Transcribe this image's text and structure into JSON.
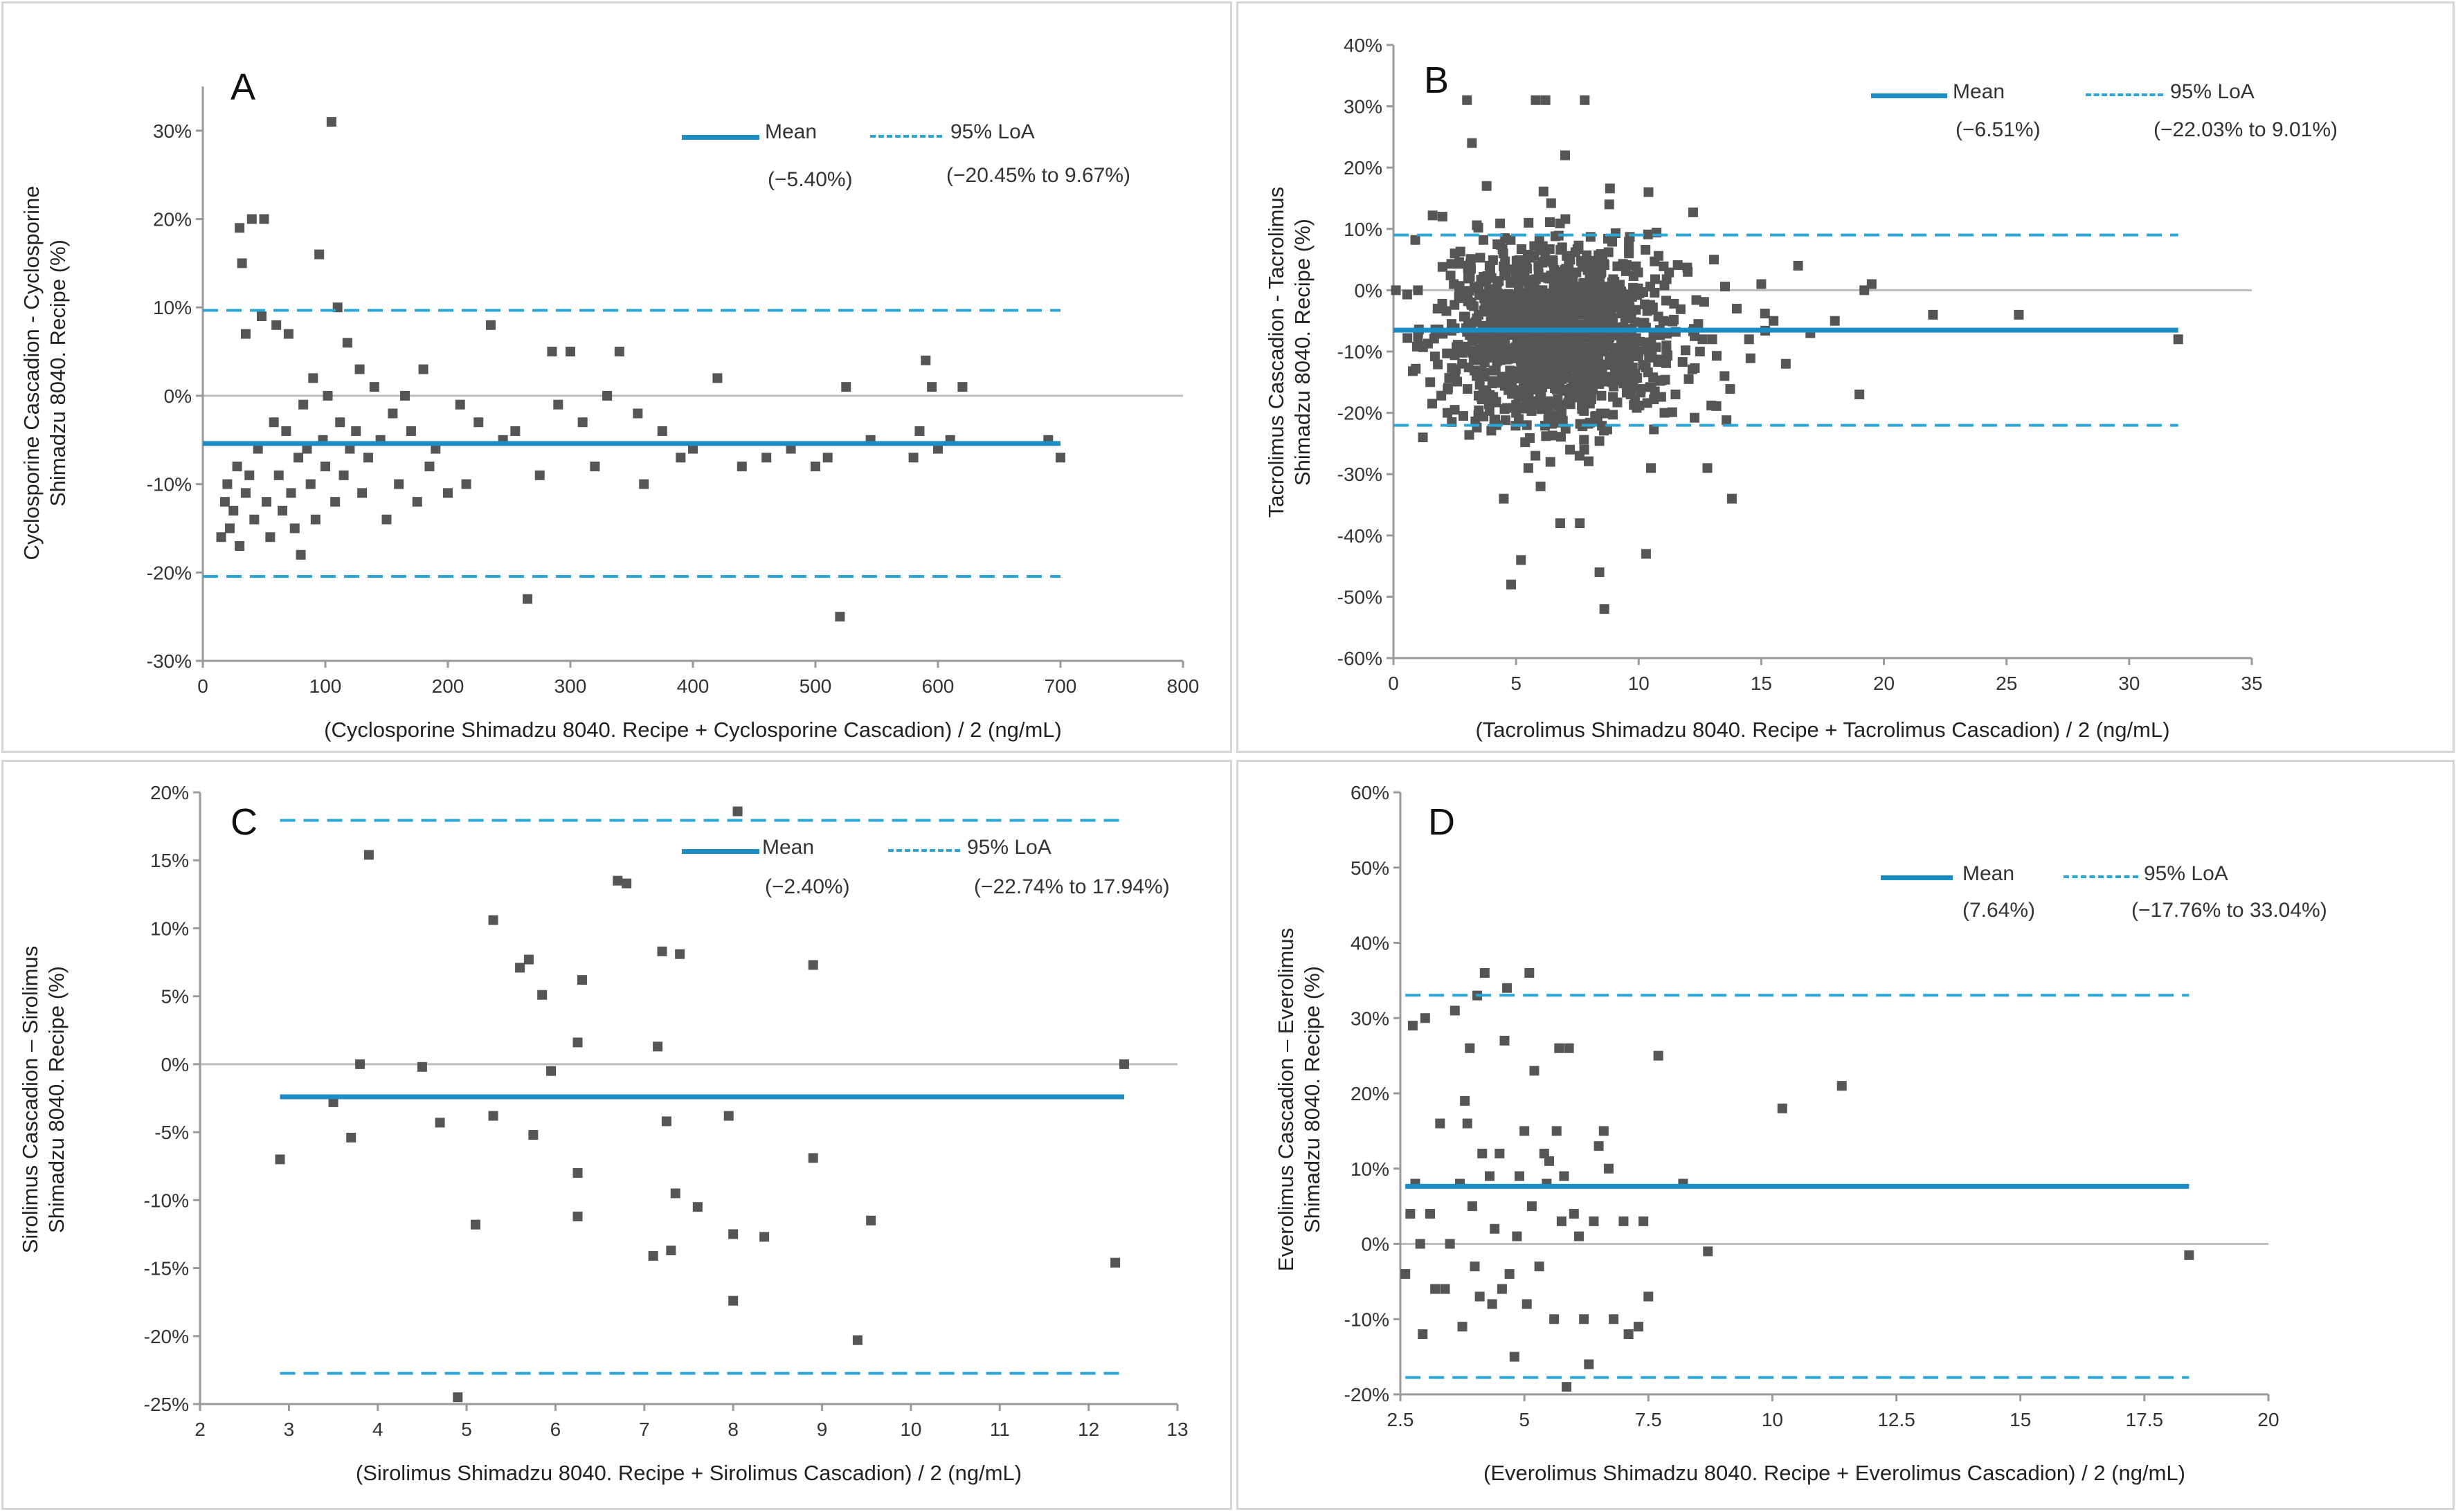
{
  "colors": {
    "mean": "#1c8dc4",
    "loa": "#2aa6d6",
    "zero": "#bdbdbd",
    "point": "#555555",
    "axis": "#9a9a9a"
  },
  "chart_data": [
    {
      "panel": "A",
      "type": "scatter",
      "title": "",
      "xlabel": "(Cyclosporine Shimadzu 8040. Recipe + Cyclosporine  Cascadion) / 2 (ng/mL)",
      "ylabel_line1": "Cyclosporine  Cascadion - Cyclosporine",
      "ylabel_line2": "Shimadzu 8040. Recipe (%)",
      "xlim": [
        0,
        800
      ],
      "ylim": [
        -30,
        35
      ],
      "xticks": [
        0,
        100,
        200,
        300,
        400,
        500,
        600,
        700,
        800
      ],
      "xtick_labels": [
        "0",
        "100",
        "200",
        "300",
        "400",
        "500",
        "600",
        "700",
        "800"
      ],
      "yticks": [
        -30,
        -20,
        -10,
        0,
        10,
        20,
        30
      ],
      "ytick_labels": [
        "-30%",
        "-20%",
        "-10%",
        "0%",
        "10%",
        "20%",
        "30%"
      ],
      "mean": -5.4,
      "loa_lower": -20.45,
      "loa_upper": 9.67,
      "line_x": [
        0,
        700
      ],
      "legend": {
        "mean_label": "Mean",
        "loa_label": "95% LoA",
        "mean_value": "(−5.40%)",
        "loa_value": "(−20.45% to 9.67%)"
      },
      "points": [
        [
          15,
          -16
        ],
        [
          18,
          -12
        ],
        [
          20,
          -10
        ],
        [
          22,
          -15
        ],
        [
          25,
          -13
        ],
        [
          28,
          -8
        ],
        [
          30,
          -17
        ],
        [
          30,
          19
        ],
        [
          32,
          15
        ],
        [
          35,
          7
        ],
        [
          35,
          -11
        ],
        [
          38,
          -9
        ],
        [
          40,
          20
        ],
        [
          42,
          -14
        ],
        [
          45,
          -6
        ],
        [
          48,
          9
        ],
        [
          50,
          20
        ],
        [
          52,
          -12
        ],
        [
          55,
          -16
        ],
        [
          58,
          -3
        ],
        [
          60,
          8
        ],
        [
          62,
          -9
        ],
        [
          65,
          -13
        ],
        [
          68,
          -4
        ],
        [
          70,
          7
        ],
        [
          72,
          -11
        ],
        [
          75,
          -15
        ],
        [
          78,
          -7
        ],
        [
          80,
          -18
        ],
        [
          82,
          -1
        ],
        [
          85,
          -6
        ],
        [
          88,
          -10
        ],
        [
          90,
          2
        ],
        [
          92,
          -14
        ],
        [
          95,
          16
        ],
        [
          98,
          -5
        ],
        [
          100,
          -8
        ],
        [
          102,
          0
        ],
        [
          105,
          31
        ],
        [
          108,
          -12
        ],
        [
          110,
          10
        ],
        [
          112,
          -3
        ],
        [
          115,
          -9
        ],
        [
          118,
          6
        ],
        [
          120,
          -6
        ],
        [
          125,
          -4
        ],
        [
          128,
          3
        ],
        [
          130,
          -11
        ],
        [
          135,
          -7
        ],
        [
          140,
          1
        ],
        [
          145,
          -5
        ],
        [
          150,
          -14
        ],
        [
          155,
          -2
        ],
        [
          160,
          -10
        ],
        [
          165,
          0
        ],
        [
          170,
          -4
        ],
        [
          175,
          -12
        ],
        [
          180,
          3
        ],
        [
          185,
          -8
        ],
        [
          190,
          -6
        ],
        [
          200,
          -11
        ],
        [
          210,
          -1
        ],
        [
          215,
          -10
        ],
        [
          225,
          -3
        ],
        [
          235,
          8
        ],
        [
          245,
          -5
        ],
        [
          255,
          -4
        ],
        [
          265,
          -23
        ],
        [
          275,
          -9
        ],
        [
          285,
          5
        ],
        [
          290,
          -1
        ],
        [
          300,
          5
        ],
        [
          310,
          -3
        ],
        [
          320,
          -8
        ],
        [
          330,
          0
        ],
        [
          340,
          5
        ],
        [
          355,
          -2
        ],
        [
          360,
          -10
        ],
        [
          375,
          -4
        ],
        [
          390,
          -7
        ],
        [
          400,
          -6
        ],
        [
          420,
          2
        ],
        [
          440,
          -8
        ],
        [
          460,
          -7
        ],
        [
          480,
          -6
        ],
        [
          500,
          -8
        ],
        [
          510,
          -7
        ],
        [
          520,
          -25
        ],
        [
          525,
          1
        ],
        [
          545,
          -5
        ],
        [
          580,
          -7
        ],
        [
          585,
          -4
        ],
        [
          590,
          4
        ],
        [
          595,
          1
        ],
        [
          600,
          -6
        ],
        [
          610,
          -5
        ],
        [
          620,
          1
        ],
        [
          690,
          -5
        ],
        [
          700,
          -7
        ]
      ]
    },
    {
      "panel": "B",
      "type": "scatter",
      "title": "",
      "xlabel": "(Tacrolimus Shimadzu 8040. Recipe + Tacrolimus Cascadion) / 2 (ng/mL)",
      "ylabel_line1": "Tacrolimus Cascadion - Tacrolimus",
      "ylabel_line2": "Shimadzu 8040. Recipe (%)",
      "xlim": [
        0,
        35
      ],
      "ylim": [
        -60,
        40
      ],
      "xticks": [
        0,
        5,
        10,
        15,
        20,
        25,
        30,
        35
      ],
      "xtick_labels": [
        "0",
        "5",
        "10",
        "15",
        "20",
        "25",
        "30",
        "35"
      ],
      "yticks": [
        -60,
        -50,
        -40,
        -30,
        -20,
        -10,
        0,
        10,
        20,
        30,
        40
      ],
      "ytick_labels": [
        "-60%",
        "-50%",
        "-40%",
        "-30%",
        "-20%",
        "-10%",
        "0%",
        "10%",
        "20%",
        "30%",
        "40%"
      ],
      "mean": -6.51,
      "loa_lower": -22.03,
      "loa_upper": 9.01,
      "line_x": [
        0,
        32
      ],
      "legend": {
        "mean_label": "Mean",
        "loa_label": "95% LoA",
        "mean_value": "(−6.51%)",
        "loa_value": "(−22.03% to 9.01%)"
      },
      "points": [
        [
          0.1,
          0
        ],
        [
          1.0,
          0
        ],
        [
          1.2,
          -24
        ],
        [
          1.5,
          -15
        ],
        [
          1.8,
          -3
        ],
        [
          2.0,
          12
        ],
        [
          2.2,
          -20
        ],
        [
          2.5,
          6
        ],
        [
          2.8,
          -12
        ],
        [
          3.0,
          31
        ],
        [
          3.2,
          24
        ],
        [
          3.5,
          -8
        ],
        [
          3.8,
          17
        ],
        [
          4.0,
          2
        ],
        [
          4.2,
          -22
        ],
        [
          4.5,
          -34
        ],
        [
          4.8,
          -48
        ],
        [
          5.0,
          -20
        ],
        [
          5.2,
          -44
        ],
        [
          5.5,
          -29
        ],
        [
          5.8,
          31
        ],
        [
          6.0,
          -32
        ],
        [
          6.2,
          31
        ],
        [
          6.4,
          -28
        ],
        [
          6.8,
          -38
        ],
        [
          7.0,
          22
        ],
        [
          7.2,
          -26
        ],
        [
          7.6,
          -38
        ],
        [
          7.8,
          31
        ],
        [
          8.4,
          -46
        ],
        [
          8.6,
          -52
        ],
        [
          8.8,
          14
        ],
        [
          9.2,
          -12
        ],
        [
          9.6,
          6
        ],
        [
          10.0,
          -10
        ],
        [
          10.3,
          -43
        ],
        [
          10.4,
          16
        ],
        [
          10.5,
          -29
        ],
        [
          11.0,
          -5
        ],
        [
          11.5,
          -17
        ],
        [
          12.0,
          3
        ],
        [
          12.5,
          -10
        ],
        [
          12.8,
          -29
        ],
        [
          13.0,
          -8
        ],
        [
          13.5,
          -14
        ],
        [
          13.8,
          -34
        ],
        [
          14.0,
          -3
        ],
        [
          14.5,
          -8
        ],
        [
          15.0,
          1
        ],
        [
          15.5,
          -5
        ],
        [
          16.0,
          -12
        ],
        [
          16.5,
          4
        ],
        [
          17.0,
          -7
        ],
        [
          18.0,
          -5
        ],
        [
          19.0,
          -17
        ],
        [
          19.2,
          0
        ],
        [
          19.5,
          1
        ],
        [
          22.0,
          -4
        ],
        [
          25.5,
          -4
        ],
        [
          32.0,
          -8
        ]
      ]
    },
    {
      "panel": "C",
      "type": "scatter",
      "title": "",
      "xlabel": "(Sirolimus Shimadzu 8040. Recipe + Sirolimus Cascadion) / 2 (ng/mL)",
      "ylabel_line1": "Sirolimus Cascadion – Sirolimus",
      "ylabel_line2": "Shimadzu 8040. Recipe (%)",
      "xlim": [
        2,
        13
      ],
      "ylim": [
        -25,
        20
      ],
      "xticks": [
        2,
        3,
        4,
        5,
        6,
        7,
        8,
        9,
        10,
        11,
        12,
        13
      ],
      "xtick_labels": [
        "2",
        "3",
        "4",
        "5",
        "6",
        "7",
        "8",
        "9",
        "10",
        "11",
        "12",
        "13"
      ],
      "yticks": [
        -25,
        -20,
        -15,
        -10,
        -5,
        0,
        5,
        10,
        15,
        20
      ],
      "ytick_labels": [
        "-25%",
        "-20%",
        "-15%",
        "-10%",
        "-5%",
        "0%",
        "5%",
        "10%",
        "15%",
        "20%"
      ],
      "mean": -2.4,
      "loa_lower": -22.74,
      "loa_upper": 17.94,
      "line_x": [
        2.9,
        12.4
      ],
      "legend": {
        "mean_label": "Mean",
        "loa_label": "95% LoA",
        "mean_value": "(−2.40%)",
        "loa_value": "(−22.74% to 17.94%)"
      },
      "points": [
        [
          2.9,
          -7
        ],
        [
          3.5,
          -2.8
        ],
        [
          3.7,
          -5.4
        ],
        [
          3.8,
          0
        ],
        [
          3.9,
          15.4
        ],
        [
          4.5,
          -0.2
        ],
        [
          4.7,
          -4.3
        ],
        [
          4.9,
          -24.5
        ],
        [
          5.1,
          -11.8
        ],
        [
          5.3,
          10.6
        ],
        [
          5.3,
          -3.8
        ],
        [
          5.6,
          7.1
        ],
        [
          5.7,
          7.7
        ],
        [
          5.75,
          -5.2
        ],
        [
          5.85,
          5.1
        ],
        [
          5.95,
          -0.5
        ],
        [
          6.25,
          1.6
        ],
        [
          6.25,
          -8
        ],
        [
          6.25,
          -11.2
        ],
        [
          6.3,
          6.2
        ],
        [
          6.7,
          13.5
        ],
        [
          6.8,
          13.3
        ],
        [
          7.1,
          -14.1
        ],
        [
          7.15,
          1.3
        ],
        [
          7.2,
          8.3
        ],
        [
          7.25,
          -4.2
        ],
        [
          7.3,
          -13.7
        ],
        [
          7.35,
          -9.5
        ],
        [
          7.4,
          8.1
        ],
        [
          7.6,
          -10.5
        ],
        [
          7.95,
          -3.8
        ],
        [
          8.0,
          -12.5
        ],
        [
          8.0,
          -17.4
        ],
        [
          8.05,
          18.6
        ],
        [
          8.35,
          -12.7
        ],
        [
          8.9,
          7.3
        ],
        [
          8.9,
          -6.9
        ],
        [
          9.4,
          -20.3
        ],
        [
          9.55,
          -11.5
        ],
        [
          12.3,
          -14.6
        ],
        [
          12.4,
          0
        ]
      ]
    },
    {
      "panel": "D",
      "type": "scatter",
      "title": "",
      "xlabel": "(Everolimus Shimadzu 8040. Recipe + Everolimus  Cascadion) / 2 (ng/mL)",
      "ylabel_line1": "Everolimus  Cascadion – Everolimus",
      "ylabel_line2": "Shimadzu 8040. Recipe (%)",
      "xlim": [
        2.5,
        20
      ],
      "ylim": [
        -20,
        60
      ],
      "xticks": [
        2.5,
        5,
        7.5,
        10,
        12.5,
        15,
        17.5,
        20
      ],
      "xtick_labels": [
        "2.5",
        "5",
        "7.5",
        "10",
        "12.5",
        "15",
        "17.5",
        "20"
      ],
      "yticks": [
        -20,
        -10,
        0,
        10,
        20,
        30,
        40,
        50,
        60
      ],
      "ytick_labels": [
        "-20%",
        "-10%",
        "0%",
        "10%",
        "20%",
        "30%",
        "40%",
        "50%",
        "60%"
      ],
      "mean": 7.64,
      "loa_lower": -17.76,
      "loa_upper": 33.04,
      "line_x": [
        2.6,
        18.4
      ],
      "legend": {
        "mean_label": "Mean",
        "loa_label": "95% LoA",
        "mean_value": "(7.64%)",
        "loa_value": "(−17.76% to 33.04%)"
      },
      "points": [
        [
          2.6,
          -4
        ],
        [
          2.7,
          4
        ],
        [
          2.75,
          29
        ],
        [
          2.8,
          8
        ],
        [
          2.9,
          0
        ],
        [
          2.95,
          -12
        ],
        [
          3.0,
          30
        ],
        [
          3.1,
          4
        ],
        [
          3.2,
          -6
        ],
        [
          3.3,
          16
        ],
        [
          3.4,
          -6
        ],
        [
          3.5,
          0
        ],
        [
          3.6,
          31
        ],
        [
          3.7,
          8
        ],
        [
          3.75,
          -11
        ],
        [
          3.8,
          19
        ],
        [
          3.85,
          16
        ],
        [
          3.9,
          26
        ],
        [
          3.95,
          5
        ],
        [
          4.0,
          -3
        ],
        [
          4.05,
          33
        ],
        [
          4.1,
          -7
        ],
        [
          4.15,
          12
        ],
        [
          4.2,
          36
        ],
        [
          4.3,
          9
        ],
        [
          4.35,
          -8
        ],
        [
          4.4,
          2
        ],
        [
          4.5,
          12
        ],
        [
          4.55,
          -6
        ],
        [
          4.6,
          27
        ],
        [
          4.65,
          34
        ],
        [
          4.7,
          -4
        ],
        [
          4.8,
          -15
        ],
        [
          4.85,
          1
        ],
        [
          4.9,
          9
        ],
        [
          5.0,
          15
        ],
        [
          5.05,
          -8
        ],
        [
          5.1,
          36
        ],
        [
          5.15,
          5
        ],
        [
          5.2,
          23
        ],
        [
          5.3,
          -3
        ],
        [
          5.4,
          12
        ],
        [
          5.45,
          8
        ],
        [
          5.5,
          11
        ],
        [
          5.6,
          -10
        ],
        [
          5.65,
          15
        ],
        [
          5.7,
          26
        ],
        [
          5.75,
          3
        ],
        [
          5.8,
          9
        ],
        [
          5.85,
          -19
        ],
        [
          5.9,
          26
        ],
        [
          6.0,
          4
        ],
        [
          6.1,
          1
        ],
        [
          6.2,
          -10
        ],
        [
          6.3,
          -16
        ],
        [
          6.4,
          3
        ],
        [
          6.5,
          13
        ],
        [
          6.6,
          15
        ],
        [
          6.7,
          10
        ],
        [
          6.8,
          -10
        ],
        [
          7.0,
          3
        ],
        [
          7.1,
          -12
        ],
        [
          7.3,
          -11
        ],
        [
          7.4,
          3
        ],
        [
          7.5,
          -7
        ],
        [
          7.7,
          25
        ],
        [
          8.2,
          8
        ],
        [
          8.7,
          -1
        ],
        [
          10.2,
          18
        ],
        [
          11.4,
          21
        ],
        [
          18.4,
          -1.5
        ]
      ]
    }
  ]
}
